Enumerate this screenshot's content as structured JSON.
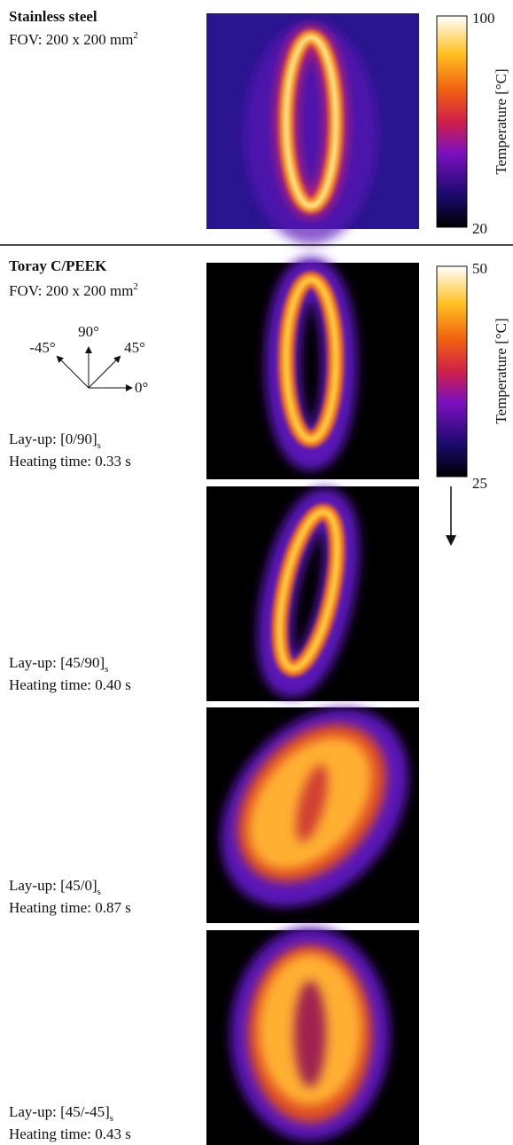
{
  "panels": [
    {
      "title": "Stainless steel",
      "fov": "FOV: 200 x 200 mm",
      "fov_sup": "2",
      "colorbar": {
        "max": "100",
        "min": "20",
        "label": "Temperature [°C]"
      }
    },
    {
      "title": "Toray C/PEEK",
      "fov": "FOV: 200 x 200 mm",
      "fov_sup": "2",
      "colorbar": {
        "max": "50",
        "min": "25",
        "label": "Temperature [°C]"
      },
      "angles": [
        "90°",
        "-45°",
        "45°",
        "0°"
      ],
      "cases": [
        {
          "layup": "Lay-up: [0/90]",
          "layup_sub": "s",
          "heating": "Heating time: 0.33 s"
        },
        {
          "layup": "Lay-up: [45/90]",
          "layup_sub": "s",
          "heating": "Heating time: 0.40 s"
        },
        {
          "layup": "Lay-up: [45/0]",
          "layup_sub": "s",
          "heating": "Heating time: 0.87 s"
        },
        {
          "layup": "Lay-up: [45/-45]",
          "layup_sub": "s",
          "heating": "Heating time: 0.43 s"
        }
      ]
    }
  ]
}
